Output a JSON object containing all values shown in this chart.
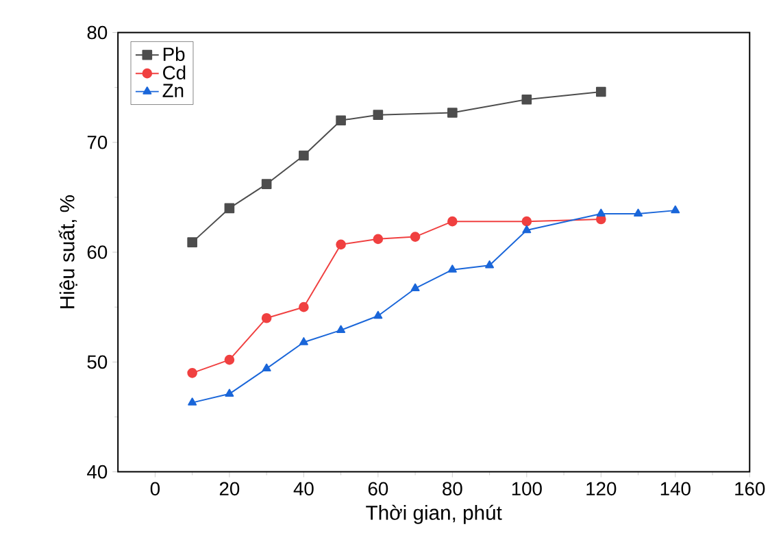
{
  "chart_data": {
    "type": "line",
    "xlabel": "Thời gian, phút",
    "ylabel": "Hiệu suất, %",
    "xlim": [
      -10,
      160
    ],
    "ylim": [
      40,
      80
    ],
    "xticks": [
      0,
      20,
      40,
      60,
      80,
      100,
      120,
      140,
      160
    ],
    "yticks": [
      40,
      50,
      60,
      70,
      80
    ],
    "legend": "top left",
    "grid": false,
    "series": [
      {
        "name": "Pb",
        "color": "#4d4d4d",
        "marker": "square",
        "x": [
          10,
          20,
          30,
          40,
          50,
          60,
          80,
          100,
          120
        ],
        "values": [
          60.9,
          64.0,
          66.2,
          68.8,
          72.0,
          72.5,
          72.7,
          73.9,
          74.6
        ]
      },
      {
        "name": "Cd",
        "color": "#f04040",
        "marker": "circle",
        "x": [
          10,
          20,
          30,
          40,
          50,
          60,
          70,
          80,
          100,
          120
        ],
        "values": [
          49.0,
          50.2,
          54.0,
          55.0,
          60.7,
          61.2,
          61.4,
          62.8,
          62.8,
          63.0
        ]
      },
      {
        "name": "Zn",
        "color": "#1a66d9",
        "marker": "triangle",
        "x": [
          10,
          20,
          30,
          40,
          50,
          60,
          70,
          80,
          90,
          100,
          120,
          130,
          140
        ],
        "values": [
          46.3,
          47.1,
          49.4,
          51.8,
          52.9,
          54.2,
          56.7,
          58.4,
          58.8,
          62.0,
          63.5,
          63.5,
          63.8
        ]
      }
    ]
  }
}
